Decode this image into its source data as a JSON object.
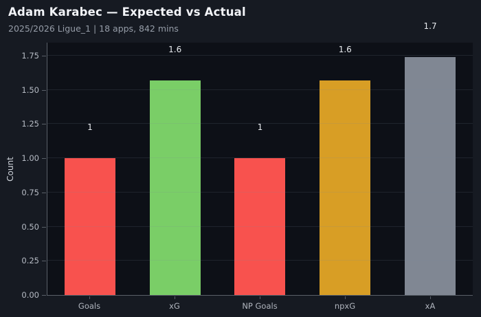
{
  "header": {
    "title": "Adam Karabec — Expected vs Actual",
    "subtitle": "2025/2026 Ligue_1 | 18 apps, 842 mins"
  },
  "chart_data": {
    "type": "bar",
    "title": "Adam Karabec — Expected vs Actual",
    "subtitle": "2025/2026 Ligue_1 | 18 apps, 842 mins",
    "categories": [
      "Goals",
      "xG",
      "NP Goals",
      "npxG",
      "xA"
    ],
    "values": [
      1.0,
      1.57,
      1.0,
      1.57,
      1.74
    ],
    "value_labels": [
      "1",
      "1.6",
      "1",
      "1.6",
      "1.7"
    ],
    "bar_colors": [
      "#f8524e",
      "#7ace67",
      "#f8524e",
      "#d89e25",
      "#808793"
    ],
    "xlabel": "",
    "ylabel": "Count",
    "ylim": [
      0,
      1.845
    ],
    "yticks": [
      0.0,
      0.25,
      0.5,
      0.75,
      1.0,
      1.25,
      1.5,
      1.75
    ],
    "ytick_labels": [
      "0.00",
      "0.25",
      "0.50",
      "0.75",
      "1.00",
      "1.25",
      "1.50",
      "1.75"
    ],
    "grid": "horizontal",
    "legend": "none",
    "colors": {
      "page_background": "#161a22",
      "plot_background": "#0d1017",
      "axis_spine": "#5a6069",
      "title_text": "#f2f4f8",
      "subtitle_text": "#969da8",
      "tick_text": "#b7bcc5",
      "value_label_text": "#e8ebef"
    }
  }
}
